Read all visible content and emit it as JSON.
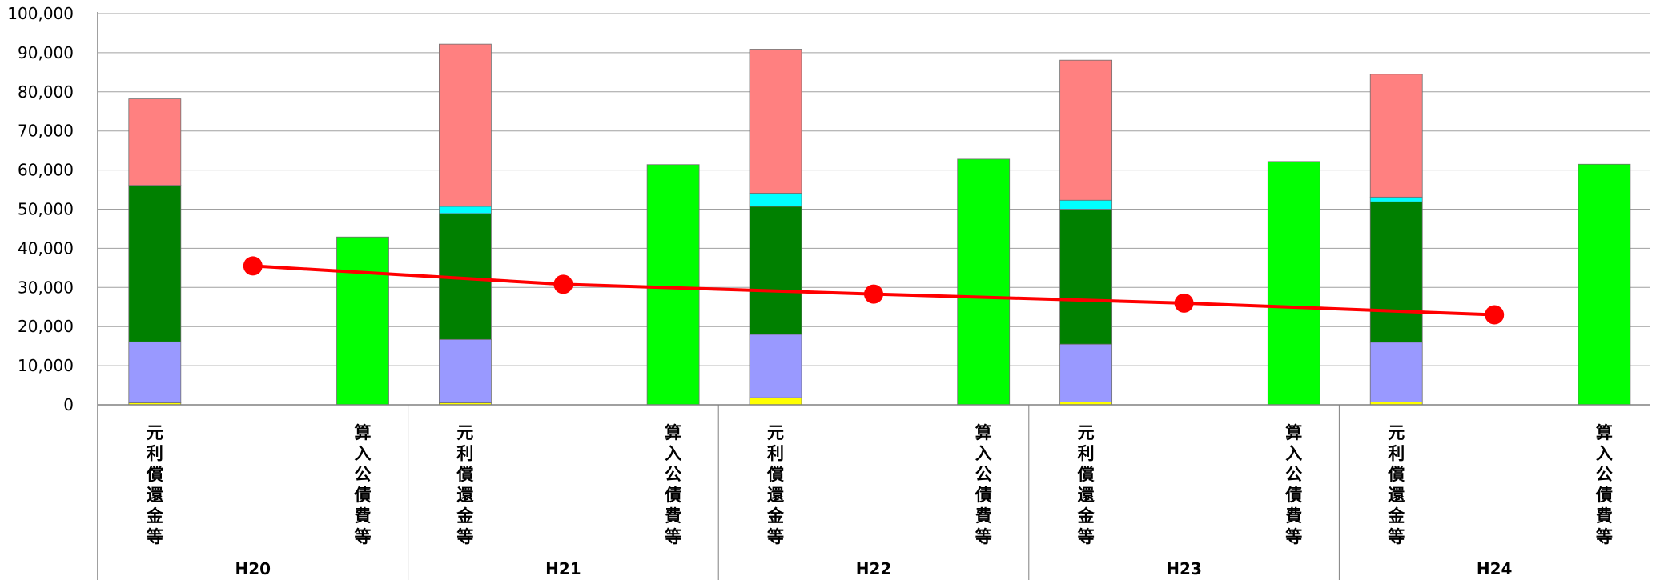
{
  "chart_data": {
    "type": "bar",
    "ylim": [
      0,
      100000
    ],
    "yticks": [
      "0",
      "10,000",
      "20,000",
      "30,000",
      "40,000",
      "50,000",
      "60,000",
      "70,000",
      "80,000",
      "90,000",
      "100,000"
    ],
    "grid": true,
    "years": [
      "H20",
      "H21",
      "H22",
      "H23",
      "H24"
    ],
    "bar_labels": [
      "元利償還金等",
      "算入公債費等"
    ],
    "stack_series": [
      {
        "color": "#FFFF00",
        "values": [
          500,
          500,
          1800,
          700,
          700
        ]
      },
      {
        "color": "#9999FF",
        "values": [
          15600,
          16200,
          16200,
          14800,
          15300
        ]
      },
      {
        "color": "#008000",
        "values": [
          40000,
          32200,
          32700,
          34500,
          35900
        ]
      },
      {
        "color": "#00FFFF",
        "values": [
          0,
          1800,
          3400,
          2300,
          1200
        ]
      },
      {
        "color": "#FF8080",
        "values": [
          22100,
          41500,
          36800,
          35800,
          31400
        ]
      }
    ],
    "green_series": {
      "color": "#00FF00",
      "values": [
        42900,
        61400,
        62800,
        62200,
        61500
      ]
    },
    "line_series": {
      "color": "#FF0000",
      "values": [
        35500,
        30800,
        28300,
        26000,
        23000
      ]
    }
  }
}
